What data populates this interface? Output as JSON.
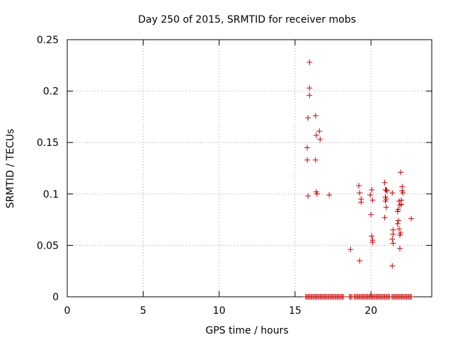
{
  "chart_data": {
    "type": "scatter",
    "title": "Day 250 of 2015, SRMTID for receiver mobs",
    "xlabel": "GPS time / hours",
    "ylabel": "SRMTID / TECUs",
    "xlim": [
      0,
      24
    ],
    "ylim": [
      0,
      0.25
    ],
    "grid": true,
    "xticks": [
      "0",
      "5",
      "10",
      "15",
      "20"
    ],
    "xtick_values": [
      0,
      5,
      10,
      15,
      20
    ],
    "yticks": [
      "0",
      "0.05",
      "0.1",
      "0.15",
      "0.2",
      "0.25"
    ],
    "ytick_values": [
      0,
      0.05,
      0.1,
      0.15,
      0.2,
      0.25
    ],
    "marker": "+",
    "color": "#cc0000",
    "series": [
      {
        "name": "SRMTID",
        "points": [
          [
            15.95,
            0.228
          ],
          [
            15.95,
            0.203
          ],
          [
            15.95,
            0.196
          ],
          [
            15.85,
            0.174
          ],
          [
            16.35,
            0.176
          ],
          [
            16.4,
            0.157
          ],
          [
            16.6,
            0.161
          ],
          [
            16.65,
            0.153
          ],
          [
            15.8,
            0.145
          ],
          [
            15.8,
            0.133
          ],
          [
            16.35,
            0.133
          ],
          [
            16.4,
            0.102
          ],
          [
            16.45,
            0.1
          ],
          [
            15.85,
            0.098
          ],
          [
            17.25,
            0.099
          ],
          [
            19.2,
            0.108
          ],
          [
            19.25,
            0.101
          ],
          [
            19.35,
            0.095
          ],
          [
            19.35,
            0.092
          ],
          [
            19.95,
            0.099
          ],
          [
            20.05,
            0.104
          ],
          [
            20.1,
            0.094
          ],
          [
            20.0,
            0.08
          ],
          [
            20.05,
            0.059
          ],
          [
            20.1,
            0.055
          ],
          [
            20.1,
            0.053
          ],
          [
            18.65,
            0.046
          ],
          [
            19.25,
            0.035
          ],
          [
            20.9,
            0.111
          ],
          [
            20.95,
            0.104
          ],
          [
            21.0,
            0.104
          ],
          [
            21.05,
            0.103
          ],
          [
            20.95,
            0.097
          ],
          [
            21.0,
            0.095
          ],
          [
            20.95,
            0.093
          ],
          [
            21.0,
            0.087
          ],
          [
            20.9,
            0.077
          ],
          [
            21.4,
            0.101
          ],
          [
            21.45,
            0.065
          ],
          [
            21.45,
            0.061
          ],
          [
            21.4,
            0.056
          ],
          [
            21.45,
            0.052
          ],
          [
            21.4,
            0.03
          ],
          [
            21.95,
            0.121
          ],
          [
            22.05,
            0.107
          ],
          [
            22.05,
            0.103
          ],
          [
            22.1,
            0.101
          ],
          [
            21.85,
            0.093
          ],
          [
            22.0,
            0.094
          ],
          [
            22.0,
            0.09
          ],
          [
            21.9,
            0.089
          ],
          [
            21.8,
            0.085
          ],
          [
            21.75,
            0.083
          ],
          [
            21.8,
            0.074
          ],
          [
            21.75,
            0.071
          ],
          [
            21.85,
            0.066
          ],
          [
            21.95,
            0.062
          ],
          [
            21.9,
            0.06
          ],
          [
            21.9,
            0.047
          ],
          [
            22.65,
            0.076
          ]
        ]
      },
      {
        "name": "SRMTID zero values",
        "range": [
          15.7,
          22.7
        ],
        "step": 0.08,
        "gaps": [
          [
            18.25,
            18.55
          ],
          [
            18.75,
            18.85
          ],
          [
            21.25,
            21.35
          ]
        ],
        "value": 0
      }
    ]
  }
}
